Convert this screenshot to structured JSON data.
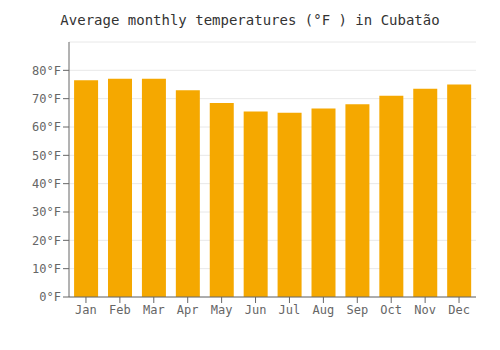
{
  "chart_data": {
    "type": "bar",
    "title": "Average monthly temperatures (°F ) in Cubatão",
    "categories": [
      "Jan",
      "Feb",
      "Mar",
      "Apr",
      "May",
      "Jun",
      "Jul",
      "Aug",
      "Sep",
      "Oct",
      "Nov",
      "Dec"
    ],
    "values": [
      76.5,
      77.0,
      77.0,
      73.0,
      68.5,
      65.5,
      65.0,
      66.5,
      68.0,
      71.0,
      73.5,
      75.0
    ],
    "color": "#F5A800",
    "ylim": [
      0,
      90
    ],
    "yticks": [
      {
        "value": 0,
        "label": "0°F"
      },
      {
        "value": 10,
        "label": "10°F"
      },
      {
        "value": 20,
        "label": "20°F"
      },
      {
        "value": 30,
        "label": "30°F"
      },
      {
        "value": 40,
        "label": "40°F"
      },
      {
        "value": 50,
        "label": "50°F"
      },
      {
        "value": 60,
        "label": "60°F"
      },
      {
        "value": 70,
        "label": "70°F"
      },
      {
        "value": 80,
        "label": "80°F"
      }
    ],
    "grid": true
  }
}
